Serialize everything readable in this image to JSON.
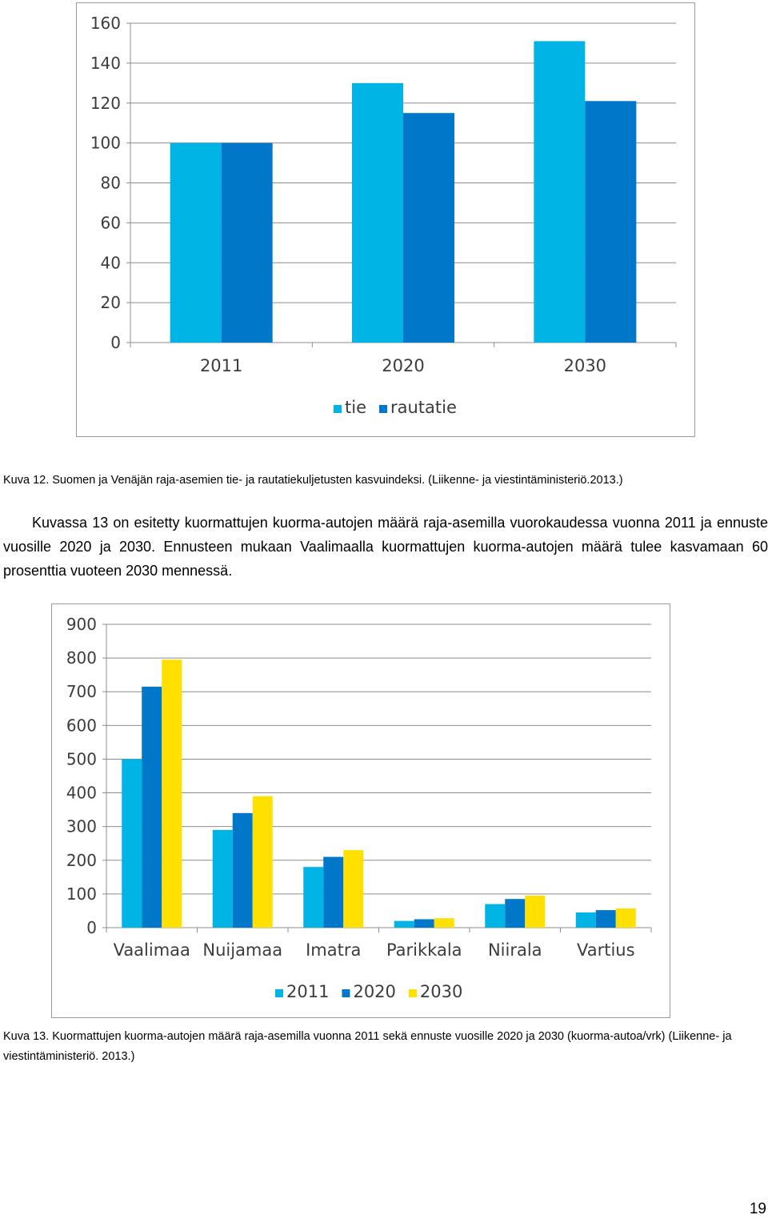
{
  "chart_data": [
    {
      "type": "bar",
      "categories": [
        "2011",
        "2020",
        "2030"
      ],
      "series": [
        {
          "name": "tie",
          "color": "#00B5E6",
          "values": [
            100,
            130,
            151
          ]
        },
        {
          "name": "rautatie",
          "color": "#0077C8",
          "values": [
            100,
            115,
            121
          ]
        }
      ],
      "yticks": [
        "0",
        "20",
        "40",
        "60",
        "80",
        "100",
        "120",
        "140",
        "160"
      ],
      "ylim": [
        0,
        160
      ],
      "grid": true,
      "legend_position": "bottom"
    },
    {
      "type": "bar",
      "categories": [
        "Vaalimaa",
        "Nuijamaa",
        "Imatra",
        "Parikkala",
        "Niirala",
        "Vartius"
      ],
      "series": [
        {
          "name": "2011",
          "color": "#00B5E6",
          "values": [
            500,
            290,
            180,
            20,
            70,
            45
          ]
        },
        {
          "name": "2020",
          "color": "#0077C8",
          "values": [
            715,
            340,
            210,
            25,
            85,
            52
          ]
        },
        {
          "name": "2030",
          "color": "#FFE000",
          "values": [
            795,
            390,
            230,
            28,
            95,
            57
          ]
        }
      ],
      "yticks": [
        "0",
        "100",
        "200",
        "300",
        "400",
        "500",
        "600",
        "700",
        "800",
        "900"
      ],
      "ylim": [
        0,
        900
      ],
      "grid": true,
      "legend_position": "bottom"
    }
  ],
  "captions": {
    "figure12": "Kuva 12. Suomen ja Venäjän raja-asemien tie- ja rautatiekuljetusten kasvuindeksi. (Liikenne- ja viestintäministeriö.2013.)",
    "figure13": "Kuva 13. Kuormattujen kuorma-autojen määrä raja-asemilla vuonna 2011 sekä ennuste vuosille 2020 ja 2030 (kuorma-autoa/vrk) (Liikenne- ja viestintäministeriö. 2013.)"
  },
  "body_text": "Kuvassa 13 on esitetty kuormattujen kuorma-autojen määrä raja-asemilla vuorokaudessa vuonna 2011 ja ennuste vuosille 2020 ja 2030. Ennusteen mukaan Vaalimaalla kuormattujen kuorma-autojen määrä tulee kasvamaan 60 prosenttia vuoteen 2030 mennessä.",
  "page_number": "19"
}
